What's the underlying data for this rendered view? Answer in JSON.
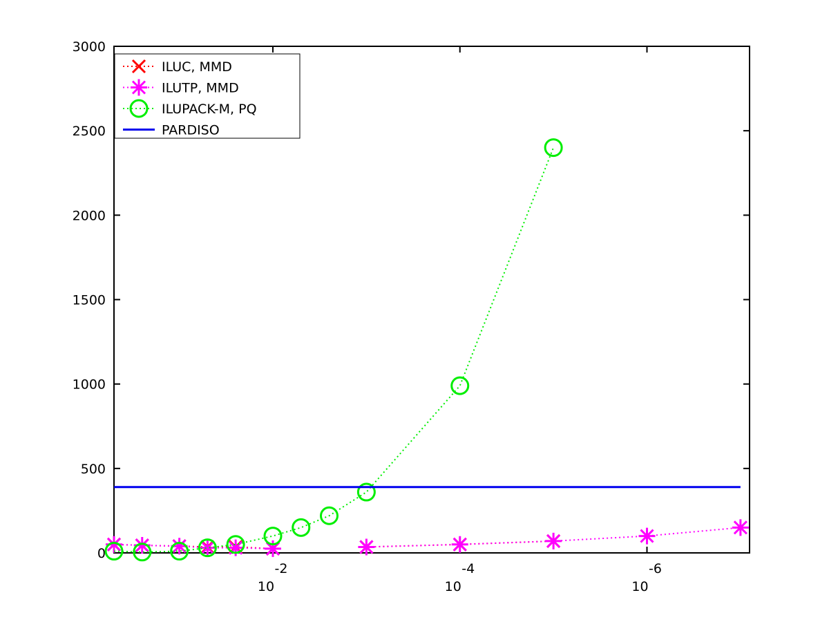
{
  "chart_data": {
    "type": "line",
    "x": [
      0.5,
      0.25,
      0.1,
      0.05,
      0.025,
      0.01,
      0.005,
      0.0025,
      0.001,
      0.0001,
      1e-05,
      1e-06,
      1e-07
    ],
    "xlog": true,
    "xlim": [
      0.5,
      8e-08
    ],
    "xticks": [
      {
        "value": 0.01,
        "label": "10",
        "exponent": "-2"
      },
      {
        "value": 0.0001,
        "label": "10",
        "exponent": "-4"
      },
      {
        "value": 1e-06,
        "label": "10",
        "exponent": "-6"
      }
    ],
    "ylim": [
      0,
      3000
    ],
    "yticks": [
      0,
      500,
      1000,
      1500,
      2000,
      2500,
      3000
    ],
    "grid": false,
    "legend": "upper left",
    "series": [
      {
        "name": "ILUC, MMD",
        "color": "#ff0000",
        "marker": "x",
        "linestyle": "dotted",
        "values": [
          50,
          45,
          40,
          35,
          35,
          25,
          null,
          null,
          35,
          50,
          70,
          null,
          null
        ]
      },
      {
        "name": "ILUTP, MMD",
        "color": "#ff00ff",
        "marker": "asterisk",
        "linestyle": "dotted",
        "values": [
          50,
          45,
          40,
          30,
          30,
          25,
          null,
          null,
          35,
          50,
          70,
          100,
          150
        ]
      },
      {
        "name": "ILUPACK-M, PQ",
        "color": "#00ee00",
        "marker": "circle",
        "linestyle": "dotted",
        "values": [
          10,
          5,
          10,
          30,
          50,
          100,
          150,
          220,
          360,
          990,
          2400,
          null,
          null
        ]
      },
      {
        "name": "PARDISO",
        "color": "#0000ee",
        "marker": "none",
        "linestyle": "solid",
        "values": [
          390,
          390,
          390,
          390,
          390,
          390,
          390,
          390,
          390,
          390,
          390,
          390,
          390
        ]
      }
    ]
  }
}
